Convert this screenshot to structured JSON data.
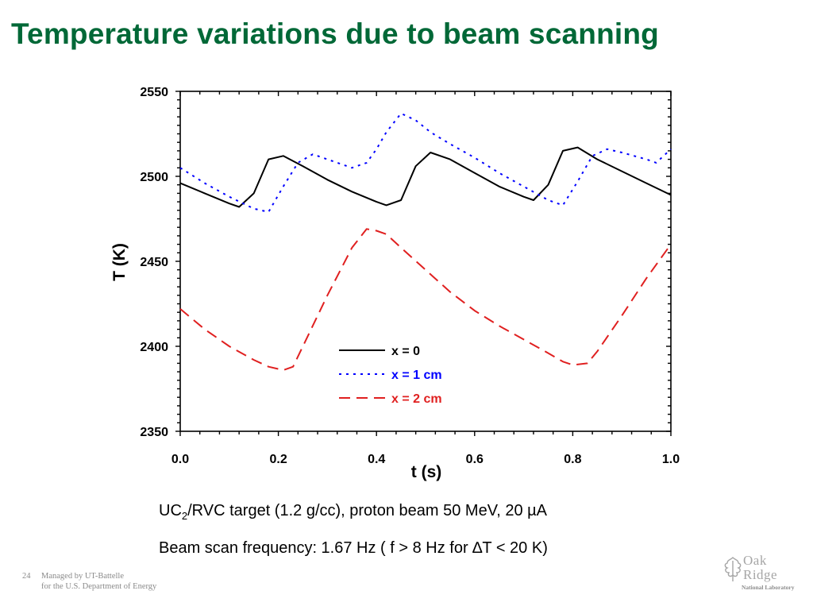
{
  "slide": {
    "title": "Temperature variations due to beam scanning",
    "caption_1": {
      "prefix": "UC",
      "subscript": "2",
      "suffix": "/RVC target (1.2 g/cc), proton beam 50 MeV, 20 µA"
    },
    "caption_2": "Beam scan frequency: 1.67 Hz ( f > 8 Hz for ∆T < 20 K)",
    "page_number": "24",
    "footer_line_1": "Managed by UT-Battelle",
    "footer_line_2": "for the U.S. Department of Energy",
    "logo": {
      "line_1": "Oak",
      "line_2": "Ridge",
      "line_3": "National Laboratory"
    }
  },
  "chart_data": {
    "type": "line",
    "title": "",
    "xlabel": "t (s)",
    "ylabel": "T (K)",
    "xlim": [
      0.0,
      1.0
    ],
    "ylim": [
      2350,
      2550
    ],
    "x_ticks": [
      0.0,
      0.2,
      0.4,
      0.6,
      0.8,
      1.0
    ],
    "x_tick_labels": [
      "0.0",
      "0.2",
      "0.4",
      "0.6",
      "0.8",
      "1.0"
    ],
    "y_ticks": [
      2350,
      2400,
      2450,
      2500,
      2550
    ],
    "y_tick_labels": [
      "2350",
      "2400",
      "2450",
      "2500",
      "2550"
    ],
    "grid": false,
    "legend_position": "lower-center",
    "series": [
      {
        "name": "x = 0",
        "color": "#000000",
        "dash": "solid",
        "x": [
          0.0,
          0.05,
          0.1,
          0.12,
          0.15,
          0.18,
          0.21,
          0.25,
          0.3,
          0.35,
          0.4,
          0.42,
          0.45,
          0.48,
          0.51,
          0.55,
          0.6,
          0.65,
          0.7,
          0.72,
          0.75,
          0.78,
          0.81,
          0.85,
          0.9,
          0.95,
          1.0
        ],
        "y": [
          2496,
          2490,
          2484,
          2482,
          2490,
          2510,
          2512,
          2506,
          2498,
          2491,
          2485,
          2483,
          2486,
          2506,
          2514,
          2510,
          2502,
          2494,
          2488,
          2486,
          2495,
          2515,
          2517,
          2510,
          2503,
          2496,
          2489
        ]
      },
      {
        "name": "x = 1 cm",
        "color": "#0000ff",
        "dash": "dotted",
        "x": [
          0.0,
          0.05,
          0.1,
          0.15,
          0.18,
          0.21,
          0.24,
          0.27,
          0.3,
          0.35,
          0.38,
          0.4,
          0.42,
          0.45,
          0.48,
          0.51,
          0.55,
          0.6,
          0.65,
          0.7,
          0.75,
          0.78,
          0.81,
          0.84,
          0.87,
          0.9,
          0.95,
          0.97,
          1.0
        ],
        "y": [
          2505,
          2496,
          2488,
          2481,
          2479,
          2494,
          2508,
          2513,
          2510,
          2505,
          2508,
          2516,
          2526,
          2537,
          2533,
          2526,
          2519,
          2511,
          2502,
          2494,
          2486,
          2483,
          2497,
          2512,
          2516,
          2514,
          2510,
          2508,
          2516
        ]
      },
      {
        "name": "x = 2 cm",
        "color": "#e02020",
        "dash": "dashed",
        "x": [
          0.0,
          0.05,
          0.1,
          0.15,
          0.18,
          0.21,
          0.23,
          0.25,
          0.3,
          0.35,
          0.38,
          0.4,
          0.42,
          0.45,
          0.5,
          0.55,
          0.6,
          0.65,
          0.7,
          0.75,
          0.78,
          0.8,
          0.83,
          0.85,
          0.9,
          0.95,
          1.0
        ],
        "y": [
          2422,
          2410,
          2400,
          2392,
          2388,
          2386,
          2388,
          2400,
          2430,
          2458,
          2469,
          2468,
          2466,
          2458,
          2445,
          2432,
          2421,
          2412,
          2404,
          2396,
          2391,
          2389,
          2390,
          2397,
          2418,
          2440,
          2460
        ]
      }
    ]
  }
}
